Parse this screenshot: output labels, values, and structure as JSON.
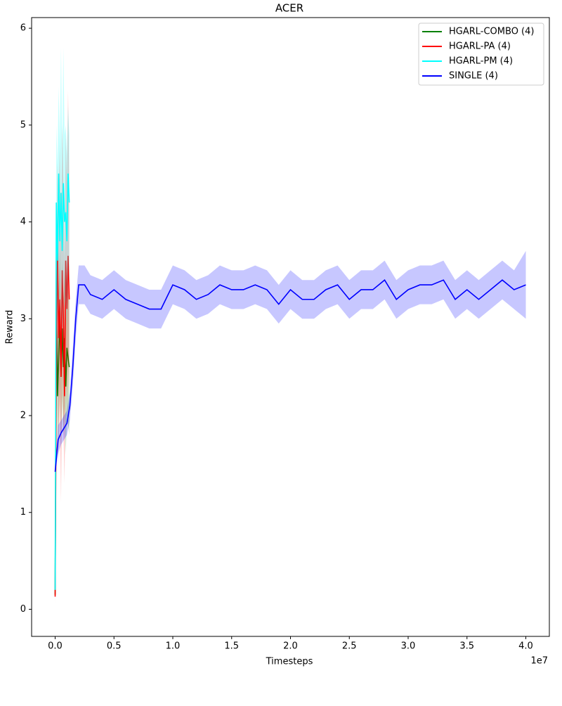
{
  "chart_data": {
    "type": "line",
    "title": "ACER",
    "x_label": "Timesteps",
    "y_label": "Reward",
    "x_offset_label": "1e7",
    "xlim": [
      -2000000,
      42000000
    ],
    "ylim": [
      -0.28,
      6.11
    ],
    "xticks": [
      {
        "value": 0,
        "label": "0.0"
      },
      {
        "value": 5000000,
        "label": "0.5"
      },
      {
        "value": 10000000,
        "label": "1.0"
      },
      {
        "value": 15000000,
        "label": "1.5"
      },
      {
        "value": 20000000,
        "label": "2.0"
      },
      {
        "value": 25000000,
        "label": "2.5"
      },
      {
        "value": 30000000,
        "label": "3.0"
      },
      {
        "value": 35000000,
        "label": "3.5"
      },
      {
        "value": 40000000,
        "label": "4.0"
      }
    ],
    "yticks": [
      0,
      1,
      2,
      3,
      4,
      5,
      6
    ],
    "legend": "upper right",
    "series": [
      {
        "name": "HGARL-COMBO (4)",
        "color": "#008000",
        "x": [
          0,
          100000,
          200000,
          300000,
          400000,
          500000,
          600000,
          700000,
          800000,
          900000,
          1000000,
          1100000,
          1200000
        ],
        "values": [
          0.15,
          3.28,
          2.2,
          2.6,
          3.0,
          2.4,
          2.9,
          2.5,
          2.8,
          2.3,
          2.7,
          2.6,
          2.5
        ],
        "lower": [
          0.1,
          2.6,
          1.6,
          1.9,
          2.3,
          1.7,
          2.2,
          1.8,
          2.1,
          1.6,
          2.0,
          1.9,
          1.8
        ],
        "upper": [
          0.2,
          3.9,
          2.8,
          3.3,
          3.7,
          3.1,
          3.6,
          3.2,
          3.5,
          3.0,
          3.4,
          3.3,
          3.2
        ]
      },
      {
        "name": "HGARL-PA (4)",
        "color": "#ff0000",
        "x": [
          0,
          100000,
          200000,
          300000,
          400000,
          500000,
          600000,
          700000,
          800000,
          900000,
          1000000,
          1100000,
          1200000
        ],
        "values": [
          0.13,
          2.5,
          3.78,
          2.8,
          3.2,
          2.4,
          3.5,
          3.0,
          2.2,
          3.6,
          3.1,
          3.65,
          3.2
        ],
        "lower": [
          0.05,
          1.8,
          3.0,
          1.5,
          2.2,
          1.1,
          2.5,
          1.9,
          1.3,
          2.7,
          2.0,
          2.6,
          2.2
        ],
        "upper": [
          0.2,
          3.2,
          4.6,
          4.2,
          4.8,
          3.8,
          5.0,
          4.4,
          3.6,
          4.9,
          4.4,
          5.35,
          4.4
        ]
      },
      {
        "name": "HGARL-PM (4)",
        "color": "#00ffff",
        "x": [
          0,
          100000,
          200000,
          300000,
          400000,
          500000,
          600000,
          700000,
          800000,
          900000,
          1000000,
          1100000,
          1200000
        ],
        "values": [
          0.2,
          4.2,
          3.6,
          4.5,
          3.8,
          4.3,
          3.7,
          4.4,
          4.0,
          4.1,
          3.8,
          4.5,
          4.2
        ],
        "lower": [
          0.1,
          3.4,
          2.8,
          3.6,
          2.9,
          3.4,
          2.8,
          3.5,
          3.1,
          3.2,
          2.9,
          3.6,
          3.3
        ],
        "upper": [
          0.3,
          5.0,
          4.6,
          5.4,
          4.8,
          5.8,
          4.7,
          5.8,
          4.9,
          5.0,
          4.7,
          5.2,
          4.9
        ]
      },
      {
        "name": "SINGLE (4)",
        "color": "#0000ff",
        "x": [
          0,
          250000,
          500000,
          750000,
          1000000,
          1250000,
          1500000,
          1750000,
          2000000,
          2500000,
          3000000,
          4000000,
          5000000,
          6000000,
          7000000,
          8000000,
          9000000,
          10000000,
          11000000,
          12000000,
          13000000,
          14000000,
          15000000,
          16000000,
          17000000,
          18000000,
          19000000,
          20000000,
          21000000,
          22000000,
          23000000,
          24000000,
          25000000,
          26000000,
          27000000,
          28000000,
          29000000,
          30000000,
          31000000,
          32000000,
          33000000,
          34000000,
          35000000,
          36000000,
          37000000,
          38000000,
          39000000,
          40000000
        ],
        "values": [
          1.42,
          1.75,
          1.82,
          1.87,
          1.92,
          2.1,
          2.5,
          3.0,
          3.35,
          3.35,
          3.25,
          3.2,
          3.3,
          3.2,
          3.15,
          3.1,
          3.1,
          3.35,
          3.3,
          3.2,
          3.25,
          3.35,
          3.3,
          3.3,
          3.35,
          3.3,
          3.15,
          3.3,
          3.2,
          3.2,
          3.3,
          3.35,
          3.2,
          3.3,
          3.3,
          3.4,
          3.2,
          3.3,
          3.35,
          3.35,
          3.4,
          3.2,
          3.3,
          3.2,
          3.3,
          3.4,
          3.3,
          3.35
        ],
        "lower": [
          1.4,
          1.6,
          1.7,
          1.75,
          1.8,
          1.95,
          2.3,
          2.8,
          3.15,
          3.15,
          3.05,
          3.0,
          3.1,
          3.0,
          2.95,
          2.9,
          2.9,
          3.15,
          3.1,
          3.0,
          3.05,
          3.15,
          3.1,
          3.1,
          3.15,
          3.1,
          2.95,
          3.1,
          3.0,
          3.0,
          3.1,
          3.15,
          3.0,
          3.1,
          3.1,
          3.2,
          3.0,
          3.1,
          3.15,
          3.15,
          3.2,
          3.0,
          3.1,
          3.0,
          3.1,
          3.2,
          3.1,
          3.0
        ],
        "upper": [
          1.45,
          1.9,
          1.95,
          2.0,
          2.05,
          2.25,
          2.7,
          3.2,
          3.55,
          3.55,
          3.45,
          3.4,
          3.5,
          3.4,
          3.35,
          3.3,
          3.3,
          3.55,
          3.5,
          3.4,
          3.45,
          3.55,
          3.5,
          3.5,
          3.55,
          3.5,
          3.35,
          3.5,
          3.4,
          3.4,
          3.5,
          3.55,
          3.4,
          3.5,
          3.5,
          3.6,
          3.4,
          3.5,
          3.55,
          3.55,
          3.6,
          3.4,
          3.5,
          3.4,
          3.5,
          3.6,
          3.5,
          3.7
        ]
      }
    ]
  }
}
